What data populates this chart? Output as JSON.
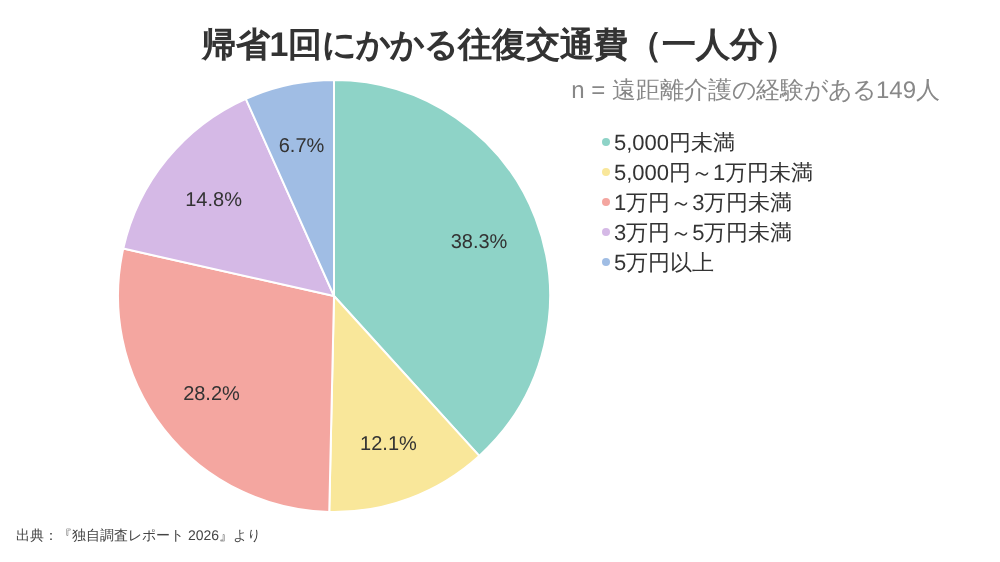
{
  "chart_data": {
    "type": "pie",
    "title": "帰省1回にかかる往復交通費（一人分）",
    "subtitle": "n = 遠距離介護の経験がある149人",
    "categories": [
      "5,000円未満",
      "5,000円～1万円未満",
      "1万円～3万円未満",
      "3万円～5万円未満",
      "5万円以上"
    ],
    "values": [
      38.3,
      12.1,
      28.2,
      14.8,
      6.7
    ],
    "colors": [
      "#8ed3c7",
      "#f9e79a",
      "#f4a6a0",
      "#d5b9e6",
      "#a0bde4"
    ],
    "value_labels": [
      "38.3%",
      "12.1%",
      "28.2%",
      "14.8%",
      "6.7%"
    ],
    "legend": "right",
    "annotations": [
      "出典：『独自調査レポート 2026』より"
    ]
  }
}
